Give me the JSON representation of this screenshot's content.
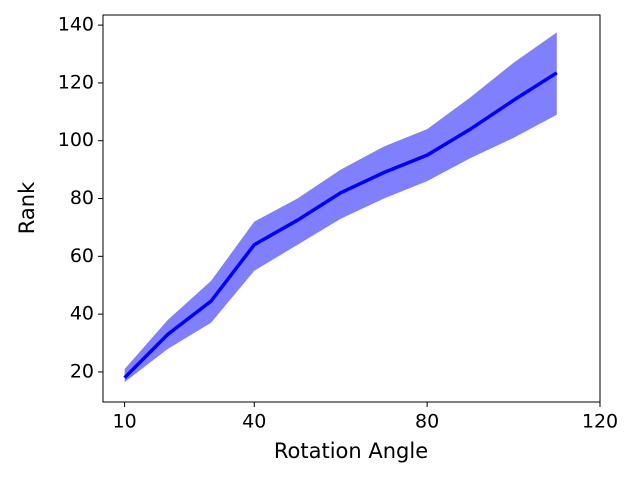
{
  "chart_data": {
    "type": "line",
    "x_label": "Rotation Angle",
    "y_label": "Rank",
    "x": [
      10,
      20,
      30,
      40,
      50,
      60,
      70,
      80,
      90,
      100,
      110
    ],
    "series": [
      {
        "color": "#0000ff",
        "values": [
          18,
          33,
          44.5,
          64,
          72.5,
          82,
          89,
          95,
          104,
          114,
          123.5
        ]
      }
    ],
    "band": {
      "color": "#8080ff",
      "lower": [
        16.5,
        28,
        37,
        55,
        64,
        73,
        80,
        86,
        94,
        101,
        109
      ],
      "upper": [
        21,
        38,
        51.5,
        72,
        80,
        90,
        98,
        104,
        115,
        127,
        137.5
      ]
    },
    "xlim": [
      5,
      120
    ],
    "xticks": [
      10,
      40,
      80,
      120
    ],
    "ylim": [
      9.6,
      143.5
    ],
    "yticks": [
      20,
      40,
      60,
      80,
      100,
      120,
      140
    ]
  }
}
